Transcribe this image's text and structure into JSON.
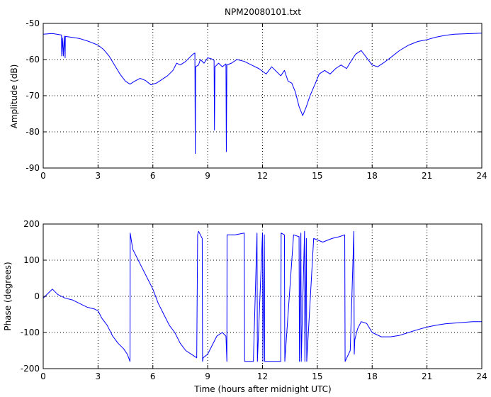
{
  "chart_data": [
    {
      "type": "line",
      "title": "NPM20080101.txt",
      "xlabel": "",
      "ylabel": "Amplitude (dB)",
      "xlim": [
        0,
        24
      ],
      "ylim": [
        -90,
        -50
      ],
      "xticks": [
        0,
        3,
        6,
        9,
        12,
        15,
        18,
        21,
        24
      ],
      "yticks": [
        -90,
        -80,
        -70,
        -60,
        -50
      ],
      "grid": "dotted",
      "line_color": "#0000ff",
      "series": [
        {
          "x": [
            0,
            0.5,
            1.0,
            1.01,
            1.05,
            1.1,
            1.15,
            1.2,
            1.21,
            1.5,
            2.0,
            2.5,
            3.0,
            3.3,
            3.6,
            3.9,
            4.2,
            4.5,
            4.75,
            5.0,
            5.3,
            5.6,
            5.9,
            6.2,
            6.5,
            6.8,
            7.1,
            7.3,
            7.5,
            7.8,
            8.0,
            8.2,
            8.3,
            8.32,
            8.34,
            8.5,
            8.6,
            8.8,
            9.0,
            9.2,
            9.35,
            9.37,
            9.4,
            9.6,
            9.8,
            10.0,
            10.02,
            10.05,
            10.3,
            10.6,
            11.0,
            11.4,
            11.8,
            12.2,
            12.5,
            12.8,
            13.0,
            13.2,
            13.4,
            13.6,
            13.8,
            14.0,
            14.2,
            14.4,
            14.6,
            14.9,
            15.1,
            15.4,
            15.7,
            16.0,
            16.3,
            16.6,
            16.9,
            17.1,
            17.4,
            17.7,
            18.0,
            18.3,
            18.6,
            19.0,
            19.5,
            20.0,
            20.5,
            21.0,
            21.5,
            22.0,
            22.5,
            23.0,
            23.5,
            24.0
          ],
          "y": [
            -53,
            -52.8,
            -53.2,
            -59,
            -54,
            -59,
            -53.5,
            -59.5,
            -53.6,
            -53.8,
            -54.2,
            -55.0,
            -56.0,
            -57.2,
            -59.0,
            -61.5,
            -64.0,
            -66.0,
            -66.8,
            -66.0,
            -65.2,
            -65.8,
            -67.0,
            -66.5,
            -65.5,
            -64.5,
            -63.0,
            -61.0,
            -61.5,
            -60.5,
            -59.5,
            -58.5,
            -58.2,
            -86.0,
            -62.0,
            -61.5,
            -60.0,
            -61.0,
            -59.5,
            -59.8,
            -60.2,
            -79.5,
            -62.0,
            -61.0,
            -62.0,
            -61.2,
            -85.5,
            -61.5,
            -61.0,
            -60.0,
            -60.5,
            -61.5,
            -62.5,
            -64.0,
            -62.0,
            -63.5,
            -64.5,
            -63.0,
            -66.0,
            -66.5,
            -69.0,
            -73.0,
            -75.5,
            -73.0,
            -70.0,
            -66.5,
            -64.0,
            -63.0,
            -64.0,
            -62.5,
            -61.5,
            -62.5,
            -60.0,
            -58.5,
            -57.5,
            -59.5,
            -61.5,
            -62.0,
            -61.0,
            -59.5,
            -57.5,
            -56.0,
            -55.0,
            -54.5,
            -53.8,
            -53.3,
            -53.0,
            -52.9,
            -52.8,
            -52.7
          ]
        }
      ]
    },
    {
      "type": "line",
      "title": "",
      "xlabel": "Time (hours after midnight UTC)",
      "ylabel": "Phase (degrees)",
      "xlim": [
        0,
        24
      ],
      "ylim": [
        -200,
        200
      ],
      "xticks": [
        0,
        3,
        6,
        9,
        12,
        15,
        18,
        21,
        24
      ],
      "yticks": [
        -200,
        -100,
        0,
        100,
        200
      ],
      "grid": "dotted",
      "line_color": "#0000ff",
      "series": [
        {
          "x": [
            0,
            0.3,
            0.5,
            0.8,
            1.2,
            1.6,
            2.0,
            2.4,
            2.8,
            3.0,
            3.2,
            3.5,
            3.8,
            4.1,
            4.4,
            4.6,
            4.75,
            4.76,
            4.9,
            5.1,
            5.4,
            5.7,
            6.0,
            6.3,
            6.6,
            6.9,
            7.2,
            7.5,
            7.8,
            8.1,
            8.4,
            8.45,
            8.5,
            8.7,
            8.72,
            8.75,
            9.0,
            9.2,
            9.5,
            9.8,
            10.0,
            10.05,
            10.06,
            10.5,
            11.0,
            11.02,
            11.5,
            11.7,
            11.72,
            12.0,
            12.02,
            12.1,
            12.12,
            13.0,
            13.02,
            13.2,
            13.22,
            13.7,
            14.0,
            14.02,
            14.1,
            14.12,
            14.3,
            14.32,
            14.4,
            14.42,
            14.8,
            15.3,
            15.8,
            16.2,
            16.5,
            16.52,
            16.8,
            17.0,
            17.02,
            17.05,
            17.2,
            17.4,
            17.7,
            18.0,
            18.5,
            19.0,
            19.5,
            20.0,
            20.5,
            21.0,
            21.5,
            22.0,
            22.5,
            23.0,
            23.5,
            24.0
          ],
          "y": [
            -5,
            10,
            20,
            5,
            -5,
            -10,
            -20,
            -30,
            -35,
            -40,
            -60,
            -80,
            -110,
            -130,
            -145,
            -160,
            -180,
            175,
            130,
            110,
            80,
            50,
            20,
            -20,
            -50,
            -80,
            -100,
            -130,
            -150,
            -160,
            -170,
            170,
            180,
            160,
            -180,
            -170,
            -160,
            -140,
            -110,
            -100,
            -110,
            -180,
            170,
            170,
            175,
            -180,
            -180,
            175,
            -180,
            175,
            -180,
            170,
            -180,
            -180,
            175,
            170,
            -180,
            170,
            165,
            -180,
            175,
            -180,
            180,
            -180,
            160,
            -180,
            160,
            150,
            160,
            165,
            170,
            -180,
            -150,
            180,
            -160,
            -120,
            -90,
            -70,
            -75,
            -100,
            -112,
            -112,
            -108,
            -100,
            -92,
            -85,
            -80,
            -76,
            -74,
            -72,
            -70,
            -70
          ]
        }
      ]
    }
  ]
}
